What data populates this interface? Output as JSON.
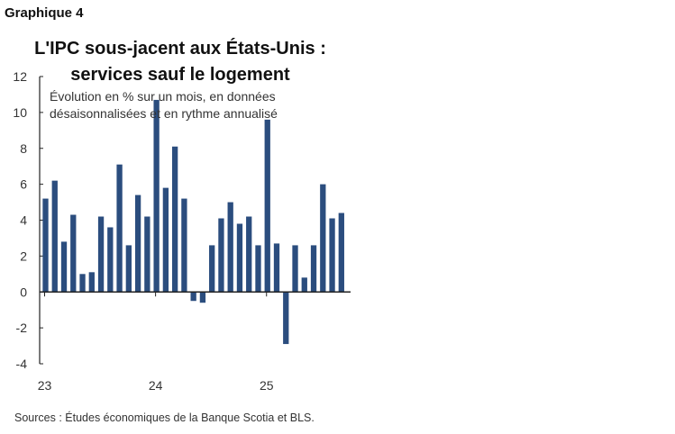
{
  "header": {
    "graph_label": "Graphique 4"
  },
  "footer": {
    "source": "Sources : Études économiques de la Banque Scotia et BLS."
  },
  "chart_data": {
    "type": "bar",
    "title_line1": "L'IPC sous-jacent aux États-Unis :",
    "title_line2": "services sauf le logement",
    "subtitle_line1": "Évolution en % sur un mois, en données",
    "subtitle_line2": "désaisonnalisées et en rythme annualisé",
    "ylim": [
      -4,
      12
    ],
    "yticks": [
      "12",
      "10",
      "8",
      "6",
      "4",
      "2",
      "0",
      "-2",
      "-4"
    ],
    "xtick_labels": [
      "23",
      "24",
      "25"
    ],
    "bar_color": "#2b4d7e",
    "values": [
      5.2,
      6.2,
      2.8,
      4.3,
      1.0,
      1.1,
      4.2,
      3.6,
      7.1,
      2.6,
      5.4,
      4.2,
      10.7,
      5.8,
      8.1,
      5.2,
      -0.5,
      -0.6,
      2.6,
      4.1,
      5.0,
      3.8,
      4.2,
      2.6,
      9.6,
      2.7,
      -2.9,
      2.6,
      0.8,
      2.6,
      6.0,
      4.1,
      4.4
    ]
  }
}
